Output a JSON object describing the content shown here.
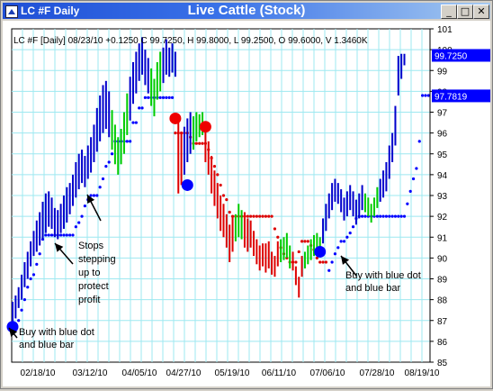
{
  "window": {
    "app_title": "LC #F Daily",
    "icon": "chart-app-icon",
    "buttons": {
      "minimize": "_",
      "maximize": "□",
      "close": "✕"
    }
  },
  "chart_data": {
    "type": "ohlc",
    "title": "Live Cattle (Stock)",
    "info_line": "LC #F [Daily] 08/23/10  +0.1250 C 99.7250, H 99.8000, L 99.2500, O 99.6000, V 1.3460K",
    "ylim": [
      85,
      101
    ],
    "yticks": [
      85,
      86,
      87,
      88,
      89,
      90,
      91,
      92,
      93,
      94,
      95,
      96,
      97,
      98,
      99,
      100,
      101
    ],
    "xticks": [
      "02/18/10",
      "03/12/10",
      "04/05/10",
      "04/27/10",
      "05/19/10",
      "06/11/10",
      "07/06/10",
      "07/28/10",
      "08/19/10"
    ],
    "grid": true,
    "price_labels": [
      {
        "value": 99.725,
        "text": "99.7250",
        "color": "#0000ff"
      },
      {
        "value": 97.7819,
        "text": "97.7819",
        "color": "#0000ff"
      }
    ],
    "colors": {
      "up": "#0000cc",
      "down": "#dd0000",
      "neutral": "#00cc00",
      "stop": "#0000ff",
      "stop_down": "#dd0000",
      "signal_buy": "#0000ff",
      "signal_sell": "#ee0000"
    },
    "segments": [
      {
        "color": "#0000cc",
        "points": [
          [
            86.7,
            87.9
          ],
          [
            87.1,
            88.2
          ],
          [
            87.6,
            88.6
          ],
          [
            88.0,
            89.2
          ],
          [
            88.6,
            89.8
          ],
          [
            89.0,
            90.3
          ],
          [
            89.6,
            90.8
          ],
          [
            90.1,
            91.3
          ],
          [
            90.3,
            91.8
          ],
          [
            90.6,
            92.2
          ],
          [
            90.9,
            92.7
          ],
          [
            91.2,
            93.1
          ],
          [
            91.5,
            93.2
          ],
          [
            91.4,
            92.9
          ],
          [
            91.0,
            92.4
          ],
          [
            90.9,
            92.3
          ],
          [
            91.2,
            92.6
          ],
          [
            91.4,
            93.0
          ],
          [
            91.7,
            93.4
          ],
          [
            92.1,
            93.6
          ],
          [
            92.5,
            94.0
          ],
          [
            92.9,
            94.6
          ],
          [
            93.3,
            95.0
          ],
          [
            93.6,
            95.2
          ],
          [
            93.4,
            94.9
          ],
          [
            93.8,
            95.4
          ],
          [
            94.1,
            95.8
          ],
          [
            94.6,
            96.4
          ],
          [
            95.1,
            97.2
          ],
          [
            95.6,
            97.8
          ],
          [
            96.0,
            98.3
          ],
          [
            96.2,
            98.5
          ],
          [
            95.8,
            98.0
          ]
        ]
      },
      {
        "color": "#00cc00",
        "points": [
          [
            95.2,
            97.1
          ],
          [
            94.5,
            96.4
          ],
          [
            94.0,
            95.8
          ],
          [
            94.5,
            96.2
          ],
          [
            95.0,
            97.0
          ],
          [
            95.9,
            97.9
          ]
        ]
      },
      {
        "color": "#0000cc",
        "points": [
          [
            96.6,
            98.7
          ],
          [
            97.4,
            99.4
          ],
          [
            97.9,
            99.9
          ],
          [
            98.5,
            100.3
          ],
          [
            98.8,
            100.6
          ],
          [
            98.3,
            100.0
          ],
          [
            97.9,
            99.6
          ]
        ]
      },
      {
        "color": "#00cc00",
        "points": [
          [
            97.3,
            99.1
          ],
          [
            96.8,
            98.6
          ],
          [
            97.6,
            99.4
          ],
          [
            98.0,
            99.9
          ]
        ]
      },
      {
        "color": "#0000cc",
        "points": [
          [
            98.4,
            100.1
          ],
          [
            98.8,
            100.5
          ],
          [
            98.7,
            100.1
          ],
          [
            98.9,
            100.3
          ],
          [
            98.7,
            99.9
          ]
        ]
      },
      {
        "color": "#dd0000",
        "points": [
          [
            93.1,
            96.5
          ],
          [
            93.5,
            96.0
          ]
        ]
      },
      {
        "color": "#0000cc",
        "points": [
          [
            94.0,
            96.3
          ],
          [
            94.6,
            96.7
          ],
          [
            95.0,
            97.0
          ]
        ]
      },
      {
        "color": "#00cc00",
        "points": [
          [
            95.2,
            96.8
          ],
          [
            95.6,
            97.0
          ],
          [
            95.8,
            96.9
          ],
          [
            95.9,
            97.0
          ]
        ]
      },
      {
        "color": "#dd0000",
        "points": [
          [
            94.6,
            96.1
          ],
          [
            94.0,
            95.6
          ],
          [
            93.1,
            94.9
          ],
          [
            92.5,
            94.2
          ],
          [
            91.9,
            93.6
          ],
          [
            91.3,
            93.0
          ],
          [
            91.0,
            92.6
          ],
          [
            90.5,
            92.1
          ],
          [
            89.8,
            91.6
          ],
          [
            90.3,
            92.0
          ]
        ]
      },
      {
        "color": "#00cc00",
        "points": [
          [
            90.8,
            92.1
          ],
          [
            91.0,
            92.6
          ],
          [
            90.9,
            92.3
          ]
        ]
      },
      {
        "color": "#dd0000",
        "points": [
          [
            90.5,
            92.2
          ],
          [
            90.3,
            91.9
          ],
          [
            90.5,
            91.8
          ],
          [
            90.1,
            91.3
          ],
          [
            89.7,
            90.9
          ],
          [
            89.4,
            90.6
          ],
          [
            89.6,
            90.7
          ],
          [
            89.3,
            90.7
          ],
          [
            89.5,
            90.8
          ],
          [
            89.2,
            90.3
          ],
          [
            89.1,
            90.1
          ],
          [
            89.6,
            90.8
          ]
        ]
      },
      {
        "color": "#00cc00",
        "points": [
          [
            89.8,
            90.9
          ],
          [
            89.9,
            91.0
          ],
          [
            90.0,
            91.2
          ],
          [
            89.5,
            90.6
          ]
        ]
      },
      {
        "color": "#dd0000",
        "points": [
          [
            89.4,
            90.3
          ],
          [
            88.7,
            89.6
          ],
          [
            88.1,
            89.1
          ],
          [
            89.1,
            90.1
          ]
        ]
      },
      {
        "color": "#00cc00",
        "points": [
          [
            89.5,
            90.3
          ],
          [
            89.7,
            90.6
          ],
          [
            89.9,
            90.9
          ],
          [
            90.1,
            91.1
          ],
          [
            90.4,
            91.2
          ],
          [
            90.3,
            91.0
          ]
        ]
      },
      {
        "color": "#0000cc",
        "points": [
          [
            90.7,
            91.9
          ],
          [
            91.3,
            92.6
          ],
          [
            91.9,
            93.1
          ],
          [
            92.3,
            93.6
          ],
          [
            92.7,
            93.8
          ],
          [
            92.6,
            93.6
          ],
          [
            92.2,
            93.3
          ],
          [
            91.8,
            92.9
          ],
          [
            92.0,
            93.2
          ],
          [
            92.3,
            93.5
          ],
          [
            92.0,
            93.2
          ],
          [
            91.6,
            92.8
          ],
          [
            91.9,
            93.1
          ],
          [
            92.3,
            93.5
          ]
        ]
      },
      {
        "color": "#00cc00",
        "points": [
          [
            92.2,
            93.1
          ],
          [
            92.0,
            92.9
          ],
          [
            91.7,
            92.6
          ],
          [
            92.0,
            92.9
          ],
          [
            92.4,
            93.4
          ]
        ]
      },
      {
        "color": "#0000cc",
        "points": [
          [
            92.7,
            93.8
          ],
          [
            92.9,
            94.2
          ],
          [
            93.2,
            94.6
          ],
          [
            93.8,
            95.4
          ],
          [
            94.6,
            96.0
          ],
          [
            95.4,
            97.3
          ],
          [
            97.8,
            99.7
          ],
          [
            98.6,
            99.8
          ],
          [
            99.25,
            99.8
          ]
        ]
      }
    ],
    "stop_runs": [
      {
        "color": "#0000ff",
        "start": 0,
        "values": [
          86.7,
          86.7,
          87.0,
          87.5,
          88.0,
          88.6,
          89.0,
          89.2,
          89.7,
          90.2,
          90.9,
          91.1,
          91.1,
          91.1,
          91.1,
          91.1,
          91.1,
          91.1,
          91.1,
          91.1,
          91.1,
          91.5,
          91.7,
          92.0,
          92.5,
          92.8,
          93.0,
          93.0,
          93.0,
          93.4,
          93.8,
          94.4,
          94.6,
          95.0,
          95.6,
          95.6,
          95.6,
          95.6,
          95.6,
          95.6,
          96.5,
          96.5,
          97.2,
          97.2,
          97.7,
          97.7,
          97.7,
          97.7,
          97.7,
          97.7,
          97.7,
          97.7,
          97.7,
          97.7
        ]
      },
      {
        "color": "#dd0000",
        "start": 54,
        "values": [
          96.0,
          96.0,
          96.0,
          96.0,
          96.0,
          95.8,
          95.5,
          95.5,
          95.5,
          95.5,
          95.5,
          95.2,
          94.8,
          94.4,
          94.0,
          93.5,
          93.0,
          92.8,
          92.2,
          92.0,
          92.0,
          92.0,
          92.0,
          92.0,
          92.0,
          92.0,
          92.0,
          92.0,
          92.0,
          92.0,
          92.0,
          92.0,
          92.0,
          91.4,
          91.0,
          90.5,
          90.2,
          90.0,
          89.8,
          89.8,
          89.8,
          90.3,
          90.8,
          90.8,
          90.8,
          90.6,
          90.4,
          90.0,
          89.8,
          89.8,
          89.8
        ]
      },
      {
        "color": "#0000ff",
        "start": 105,
        "values": [
          89.4,
          89.8,
          90.2,
          90.5,
          90.8,
          90.8,
          91.0,
          91.2,
          91.5,
          91.9,
          92.0,
          92.0,
          92.0,
          92.0,
          92.0,
          92.0,
          92.0,
          92.0,
          92.0,
          92.0,
          92.0,
          92.0,
          92.0,
          92.0,
          92.0,
          92.0,
          92.6,
          93.2,
          93.8,
          94.3,
          95.6,
          97.8,
          97.8,
          97.8
        ]
      }
    ],
    "signals": [
      {
        "bar": 0,
        "value": 86.7,
        "color": "#0000ff"
      },
      {
        "bar": 54,
        "value": 96.7,
        "color": "#ee0000"
      },
      {
        "bar": 58,
        "value": 93.5,
        "color": "#0000ff"
      },
      {
        "bar": 64,
        "value": 96.3,
        "color": "#ee0000"
      },
      {
        "bar": 102,
        "value": 90.3,
        "color": "#0000ff"
      }
    ],
    "annotations": [
      {
        "text": [
          "Stops",
          "stepping",
          "up to",
          "protect",
          "profit"
        ],
        "target_bar": 16,
        "target_value": 90.8
      },
      {
        "text": [
          "Buy with blue dot",
          "and blue bar"
        ],
        "target_bar": 1,
        "target_value": 87.0
      },
      {
        "text": [
          "Buy with blue dot",
          "and blue bar"
        ],
        "target_bar": 104,
        "target_value": 90.2
      },
      {
        "arrow_only": true,
        "target_bar": 24,
        "target_value": 93.1
      }
    ]
  }
}
